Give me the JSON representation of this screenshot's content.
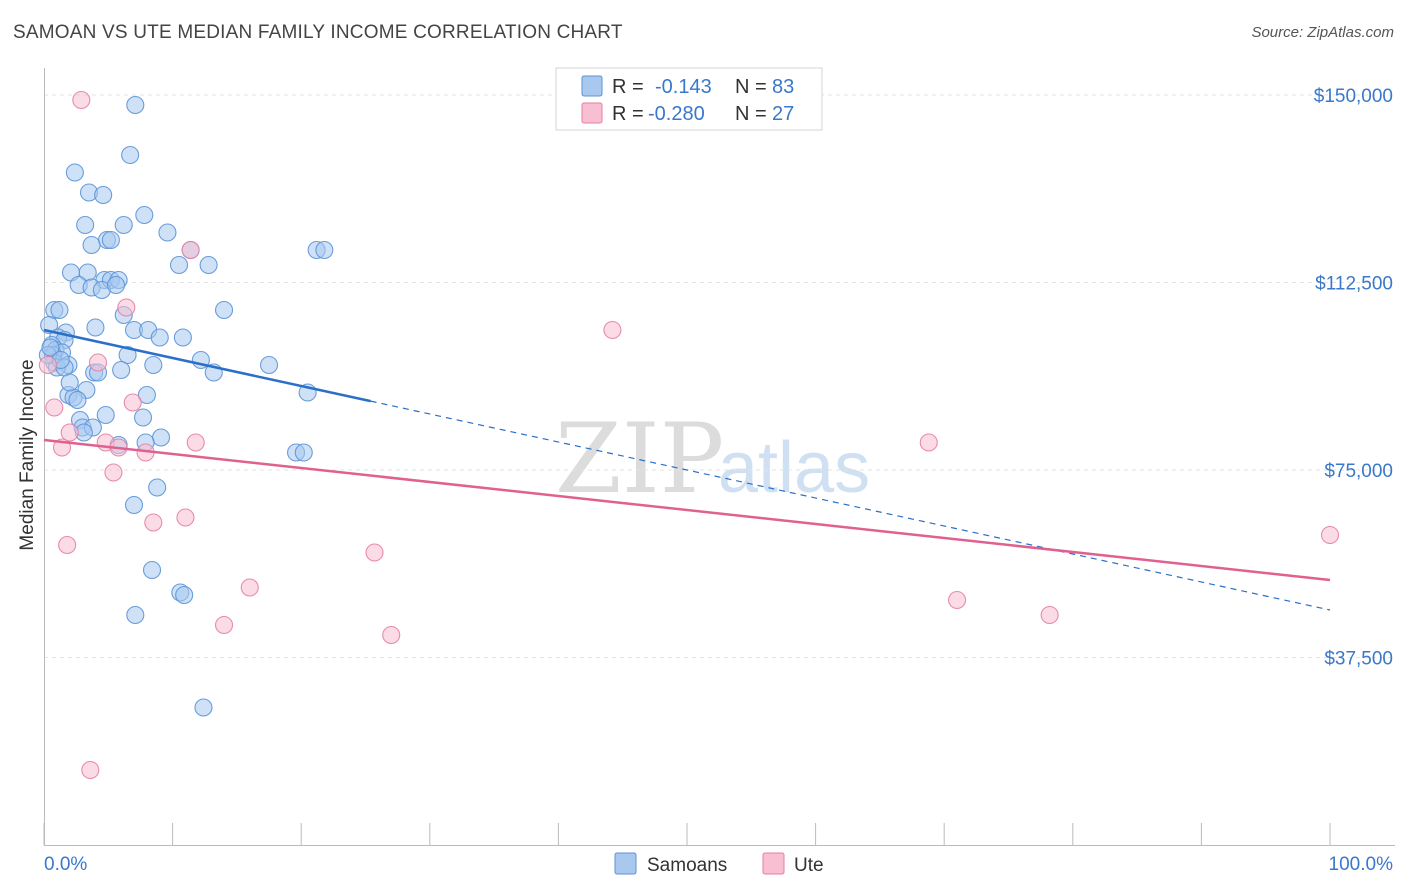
{
  "title": "SAMOAN VS UTE MEDIAN FAMILY INCOME CORRELATION CHART",
  "source": "Source: ZipAtlas.com",
  "watermark": {
    "zip": "ZIP",
    "atlas": "atlas"
  },
  "colors": {
    "samoan_fill": "#a8c8f0",
    "samoan_stroke": "#5b93d6",
    "samoan_line": "#2b6fc9",
    "ute_fill": "#f7bfd1",
    "ute_stroke": "#e57fa3",
    "ute_line": "#e0608f",
    "label": "#3a78c9",
    "grid": "#e3e3e3"
  },
  "legend": {
    "r_label": "R =",
    "n_label": "N =",
    "rows": [
      {
        "series": "samoan",
        "r": "-0.143",
        "n": "83"
      },
      {
        "series": "ute",
        "r": "-0.280",
        "n": "27"
      }
    ]
  },
  "bottom_legend": [
    "Samoans",
    "Ute"
  ],
  "chart_data": {
    "type": "scatter",
    "title": "SAMOAN VS UTE MEDIAN FAMILY INCOME CORRELATION CHART",
    "xlabel": "",
    "ylabel": "Median Family Income",
    "xlim": [
      0,
      100
    ],
    "ylim": [
      0,
      152000
    ],
    "x_tick_labels": [
      "0.0%",
      "100.0%"
    ],
    "y_ticks": [
      {
        "value": 37500,
        "label": "$37,500"
      },
      {
        "value": 75000,
        "label": "$75,000"
      },
      {
        "value": 112500,
        "label": "$112,500"
      },
      {
        "value": 150000,
        "label": "$150,000"
      }
    ],
    "grid": true,
    "legend_position": "top-center",
    "series": [
      {
        "name": "Samoans",
        "key": "samoan",
        "points": [
          [
            7.1,
            148000
          ],
          [
            6.7,
            138000
          ],
          [
            2.4,
            134500
          ],
          [
            3.5,
            130500
          ],
          [
            4.6,
            130000
          ],
          [
            7.8,
            126000
          ],
          [
            3.2,
            124000
          ],
          [
            6.2,
            124000
          ],
          [
            9.6,
            122500
          ],
          [
            4.9,
            121000
          ],
          [
            5.2,
            121000
          ],
          [
            3.7,
            120000
          ],
          [
            11.4,
            119000
          ],
          [
            21.2,
            119000
          ],
          [
            21.8,
            119000
          ],
          [
            10.5,
            116000
          ],
          [
            12.8,
            116000
          ],
          [
            2.1,
            114500
          ],
          [
            3.4,
            114500
          ],
          [
            4.7,
            113000
          ],
          [
            5.2,
            113000
          ],
          [
            5.8,
            113000
          ],
          [
            2.7,
            112000
          ],
          [
            3.7,
            111500
          ],
          [
            4.5,
            111000
          ],
          [
            5.6,
            112000
          ],
          [
            14.0,
            107000
          ],
          [
            0.8,
            107000
          ],
          [
            1.2,
            107000
          ],
          [
            6.2,
            106000
          ],
          [
            0.4,
            104000
          ],
          [
            4.0,
            103500
          ],
          [
            7.0,
            103000
          ],
          [
            8.1,
            103000
          ],
          [
            1.7,
            102500
          ],
          [
            1.1,
            101500
          ],
          [
            1.6,
            101000
          ],
          [
            9.0,
            101500
          ],
          [
            10.8,
            101500
          ],
          [
            0.6,
            100000
          ],
          [
            0.9,
            99000
          ],
          [
            1.4,
            98500
          ],
          [
            0.7,
            98000
          ],
          [
            6.5,
            98000
          ],
          [
            12.2,
            97000
          ],
          [
            0.8,
            96500
          ],
          [
            1.9,
            96000
          ],
          [
            8.5,
            96000
          ],
          [
            17.5,
            96000
          ],
          [
            1.0,
            95500
          ],
          [
            1.6,
            95500
          ],
          [
            3.9,
            94500
          ],
          [
            4.2,
            94500
          ],
          [
            13.2,
            94500
          ],
          [
            3.3,
            91000
          ],
          [
            1.9,
            90000
          ],
          [
            2.3,
            89500
          ],
          [
            8.0,
            90000
          ],
          [
            2.6,
            89000
          ],
          [
            20.5,
            90500
          ],
          [
            4.8,
            86000
          ],
          [
            7.7,
            85500
          ],
          [
            2.8,
            85000
          ],
          [
            3.0,
            83500
          ],
          [
            3.8,
            83500
          ],
          [
            3.1,
            82500
          ],
          [
            9.1,
            81500
          ],
          [
            0.3,
            98000
          ],
          [
            7.9,
            80500
          ],
          [
            5.8,
            80000
          ],
          [
            19.6,
            78500
          ],
          [
            20.2,
            78500
          ],
          [
            8.8,
            71500
          ],
          [
            7.0,
            68000
          ],
          [
            8.4,
            55000
          ],
          [
            10.6,
            50500
          ],
          [
            10.9,
            50000
          ],
          [
            7.1,
            46000
          ],
          [
            12.4,
            27500
          ],
          [
            0.5,
            99500
          ],
          [
            1.3,
            97000
          ],
          [
            2.0,
            92500
          ],
          [
            6.0,
            95000
          ]
        ]
      },
      {
        "name": "Ute",
        "key": "ute",
        "points": [
          [
            2.9,
            149000
          ],
          [
            11.4,
            119000
          ],
          [
            6.4,
            107500
          ],
          [
            44.2,
            103000
          ],
          [
            4.2,
            96500
          ],
          [
            0.3,
            96000
          ],
          [
            6.9,
            88500
          ],
          [
            0.8,
            87500
          ],
          [
            2.0,
            82500
          ],
          [
            4.8,
            80500
          ],
          [
            11.8,
            80500
          ],
          [
            68.8,
            80500
          ],
          [
            1.4,
            79500
          ],
          [
            5.8,
            79500
          ],
          [
            7.9,
            78500
          ],
          [
            5.4,
            74500
          ],
          [
            8.5,
            64500
          ],
          [
            11.0,
            65500
          ],
          [
            1.8,
            60000
          ],
          [
            25.7,
            58500
          ],
          [
            16.0,
            51500
          ],
          [
            100.0,
            62000
          ],
          [
            71.0,
            49000
          ],
          [
            78.2,
            46000
          ],
          [
            14.0,
            44000
          ],
          [
            27.0,
            42000
          ],
          [
            3.6,
            15000
          ]
        ]
      }
    ],
    "trend_lines": [
      {
        "series": "samoan",
        "x_start": 0,
        "y_start": 103000,
        "x_solid_end": 25.4,
        "x_end": 100,
        "y_end": 47000
      },
      {
        "series": "ute",
        "x_start": 0,
        "y_start": 81000,
        "x_end": 100,
        "y_end": 53000
      }
    ]
  }
}
